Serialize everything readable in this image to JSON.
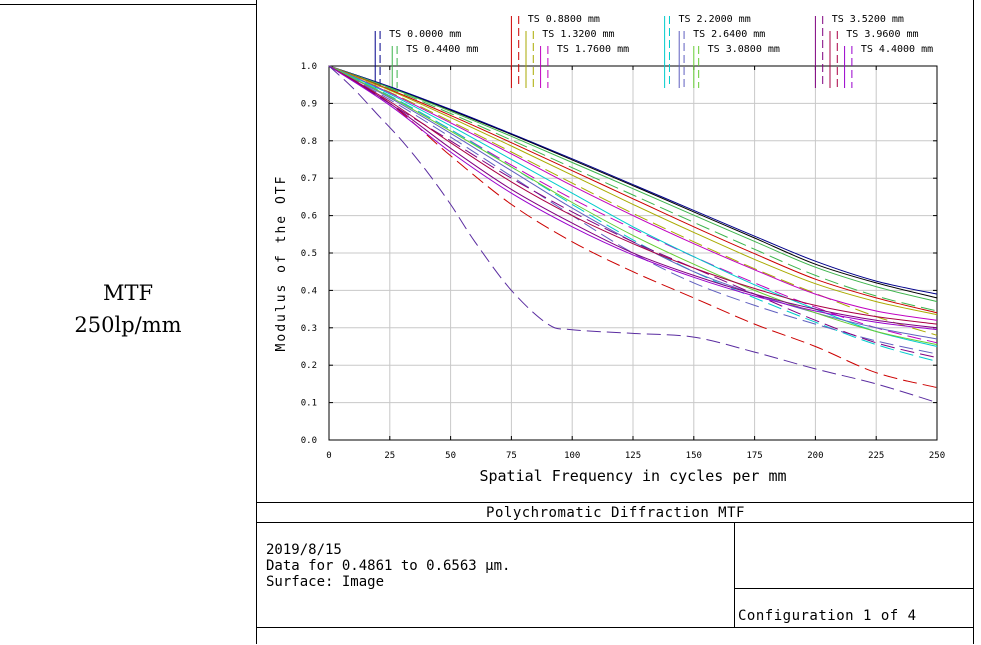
{
  "left_panel": {
    "line1": "MTF",
    "line2": "250lp/mm"
  },
  "footer": {
    "title": "Polychromatic Diffraction MTF",
    "date": "2019/8/15",
    "data_range": "Data for 0.4861 to 0.6563 μm.",
    "surface": "Surface: Image",
    "configuration": "Configuration 1 of 4"
  },
  "chart_data": {
    "type": "line",
    "title": "",
    "xlabel": "Spatial Frequency in cycles per mm",
    "ylabel": "Modulus of the OTF",
    "xlim": [
      0,
      250
    ],
    "ylim": [
      0,
      1
    ],
    "xticks": [
      0,
      25,
      50,
      75,
      100,
      125,
      150,
      175,
      200,
      225,
      250
    ],
    "yticks": [
      0.0,
      0.1,
      0.2,
      0.3,
      0.4,
      0.5,
      0.6,
      0.7,
      0.8,
      0.9,
      1.0
    ],
    "grid": true,
    "legend_position": "top",
    "legend": [
      {
        "label": "TS 0.0000 mm",
        "color": "#00008b",
        "markers_x": [
          19,
          21
        ]
      },
      {
        "label": "TS 0.4400 mm",
        "color": "#3cb44b",
        "markers_x": [
          26,
          28
        ]
      },
      {
        "label": "TS 0.8800 mm",
        "color": "#cc0000",
        "markers_x": [
          75,
          78
        ]
      },
      {
        "label": "TS 1.3200 mm",
        "color": "#aaaa00",
        "markers_x": [
          81,
          84
        ]
      },
      {
        "label": "TS 1.7600 mm",
        "color": "#c000c0",
        "markers_x": [
          87,
          90
        ]
      },
      {
        "label": "TS 2.2000 mm",
        "color": "#00cccc",
        "markers_x": [
          138,
          140
        ]
      },
      {
        "label": "TS 2.6400 mm",
        "color": "#6060c0",
        "markers_x": [
          144,
          146
        ]
      },
      {
        "label": "TS 3.0800 mm",
        "color": "#66cc33",
        "markers_x": [
          150,
          152
        ]
      },
      {
        "label": "TS 3.5200 mm",
        "color": "#800080",
        "markers_x": [
          200,
          203
        ]
      },
      {
        "label": "TS 3.9600 mm",
        "color": "#aa0044",
        "markers_x": [
          206,
          209
        ]
      },
      {
        "label": "TS 4.4000 mm",
        "color": "#9900cc",
        "markers_x": [
          212,
          215
        ]
      }
    ],
    "series": [
      {
        "color": "#000000",
        "dash": false,
        "x": [
          0,
          25,
          50,
          75,
          100,
          125,
          150,
          175,
          200,
          225,
          250
        ],
        "y": [
          1.0,
          0.944,
          0.882,
          0.817,
          0.749,
          0.68,
          0.61,
          0.54,
          0.47,
          0.42,
          0.38
        ]
      },
      {
        "color": "#00008b",
        "dash": false,
        "x": [
          0,
          25,
          50,
          75,
          100,
          125,
          150,
          175,
          200,
          225,
          250
        ],
        "y": [
          1.0,
          0.945,
          0.884,
          0.819,
          0.752,
          0.683,
          0.614,
          0.545,
          0.478,
          0.425,
          0.39
        ]
      },
      {
        "color": "#3cb44b",
        "dash": false,
        "x": [
          0,
          25,
          50,
          75,
          100,
          125,
          150,
          175,
          200,
          225,
          250
        ],
        "y": [
          1.0,
          0.942,
          0.879,
          0.812,
          0.742,
          0.672,
          0.601,
          0.531,
          0.462,
          0.41,
          0.37
        ]
      },
      {
        "color": "#3cb44b",
        "dash": true,
        "x": [
          0,
          25,
          50,
          75,
          100,
          125,
          150,
          175,
          200,
          225,
          250
        ],
        "y": [
          1.0,
          0.94,
          0.873,
          0.802,
          0.728,
          0.655,
          0.582,
          0.51,
          0.44,
          0.385,
          0.345
        ]
      },
      {
        "color": "#cc0000",
        "dash": false,
        "x": [
          0,
          25,
          50,
          75,
          100,
          125,
          150,
          175,
          200,
          225,
          250
        ],
        "y": [
          1.0,
          0.937,
          0.868,
          0.795,
          0.72,
          0.645,
          0.57,
          0.498,
          0.43,
          0.38,
          0.34
        ]
      },
      {
        "color": "#cc0000",
        "dash": true,
        "x": [
          0,
          25,
          50,
          75,
          100,
          125,
          150,
          175,
          200,
          225,
          250
        ],
        "y": [
          1.0,
          0.9,
          0.76,
          0.63,
          0.53,
          0.45,
          0.38,
          0.31,
          0.25,
          0.18,
          0.14
        ]
      },
      {
        "color": "#aaaa00",
        "dash": false,
        "x": [
          0,
          25,
          50,
          75,
          100,
          125,
          150,
          175,
          200,
          225,
          250
        ],
        "y": [
          1.0,
          0.935,
          0.862,
          0.786,
          0.708,
          0.63,
          0.555,
          0.483,
          0.418,
          0.37,
          0.335
        ]
      },
      {
        "color": "#aaaa00",
        "dash": true,
        "x": [
          0,
          25,
          50,
          75,
          100,
          125,
          150,
          175,
          200,
          225,
          250
        ],
        "y": [
          1.0,
          0.93,
          0.852,
          0.77,
          0.687,
          0.606,
          0.53,
          0.458,
          0.392,
          0.33,
          0.28
        ]
      },
      {
        "color": "#c000c0",
        "dash": false,
        "x": [
          0,
          25,
          50,
          75,
          100,
          125,
          150,
          175,
          200,
          225,
          250
        ],
        "y": [
          1.0,
          0.928,
          0.848,
          0.765,
          0.68,
          0.6,
          0.525,
          0.455,
          0.39,
          0.345,
          0.32
        ]
      },
      {
        "color": "#c000c0",
        "dash": true,
        "x": [
          0,
          25,
          50,
          75,
          100,
          125,
          150,
          175,
          200,
          225,
          250
        ],
        "y": [
          1.0,
          0.92,
          0.83,
          0.735,
          0.645,
          0.565,
          0.49,
          0.42,
          0.355,
          0.3,
          0.26
        ]
      },
      {
        "color": "#00cccc",
        "dash": false,
        "x": [
          0,
          25,
          50,
          75,
          100,
          125,
          150,
          175,
          200,
          225,
          250
        ],
        "y": [
          1.0,
          0.925,
          0.84,
          0.75,
          0.66,
          0.57,
          0.49,
          0.415,
          0.35,
          0.29,
          0.25
        ]
      },
      {
        "color": "#00cccc",
        "dash": true,
        "x": [
          0,
          25,
          50,
          75,
          100,
          125,
          150,
          175,
          200,
          225,
          250
        ],
        "y": [
          1.0,
          0.92,
          0.83,
          0.73,
          0.63,
          0.535,
          0.45,
          0.38,
          0.315,
          0.255,
          0.21
        ]
      },
      {
        "color": "#6060c0",
        "dash": false,
        "x": [
          0,
          25,
          50,
          75,
          100,
          125,
          150,
          175,
          200,
          225,
          250
        ],
        "y": [
          1.0,
          0.915,
          0.82,
          0.72,
          0.62,
          0.53,
          0.45,
          0.39,
          0.34,
          0.3,
          0.27
        ]
      },
      {
        "color": "#6060c0",
        "dash": true,
        "x": [
          0,
          25,
          50,
          75,
          100,
          125,
          150,
          175,
          200,
          225,
          250
        ],
        "y": [
          1.0,
          0.91,
          0.81,
          0.705,
          0.6,
          0.5,
          0.42,
          0.36,
          0.31,
          0.265,
          0.23
        ]
      },
      {
        "color": "#66cc33",
        "dash": false,
        "x": [
          0,
          25,
          50,
          75,
          100,
          125,
          150,
          175,
          200,
          225,
          250
        ],
        "y": [
          1.0,
          0.918,
          0.826,
          0.73,
          0.635,
          0.547,
          0.47,
          0.4,
          0.34,
          0.29,
          0.255
        ]
      },
      {
        "color": "#800080",
        "dash": false,
        "x": [
          0,
          25,
          50,
          75,
          100,
          125,
          150,
          175,
          200,
          225,
          250
        ],
        "y": [
          1.0,
          0.9,
          0.78,
          0.67,
          0.58,
          0.5,
          0.44,
          0.39,
          0.35,
          0.32,
          0.3
        ]
      },
      {
        "color": "#800080",
        "dash": true,
        "x": [
          0,
          25,
          50,
          75,
          100,
          125,
          150,
          175,
          200,
          225,
          250
        ],
        "y": [
          1.0,
          0.9,
          0.8,
          0.7,
          0.61,
          0.53,
          0.46,
          0.39,
          0.32,
          0.26,
          0.22
        ]
      },
      {
        "color": "#aa0044",
        "dash": false,
        "x": [
          0,
          25,
          50,
          75,
          100,
          125,
          150,
          175,
          200,
          225,
          250
        ],
        "y": [
          1.0,
          0.905,
          0.795,
          0.69,
          0.6,
          0.525,
          0.46,
          0.405,
          0.36,
          0.33,
          0.31
        ]
      },
      {
        "color": "#9900cc",
        "dash": false,
        "x": [
          0,
          25,
          50,
          75,
          100,
          125,
          150,
          175,
          200,
          225,
          250
        ],
        "y": [
          1.0,
          0.895,
          0.77,
          0.66,
          0.57,
          0.495,
          0.435,
          0.385,
          0.345,
          0.315,
          0.295
        ]
      },
      {
        "color": "#5a2ca0",
        "dash": true,
        "x": [
          0,
          10,
          20,
          30,
          40,
          50,
          60,
          75,
          90,
          100,
          125,
          150,
          175,
          200,
          225,
          250
        ],
        "y": [
          1.0,
          0.94,
          0.87,
          0.8,
          0.72,
          0.63,
          0.53,
          0.4,
          0.31,
          0.295,
          0.285,
          0.275,
          0.235,
          0.19,
          0.15,
          0.1
        ]
      }
    ]
  }
}
